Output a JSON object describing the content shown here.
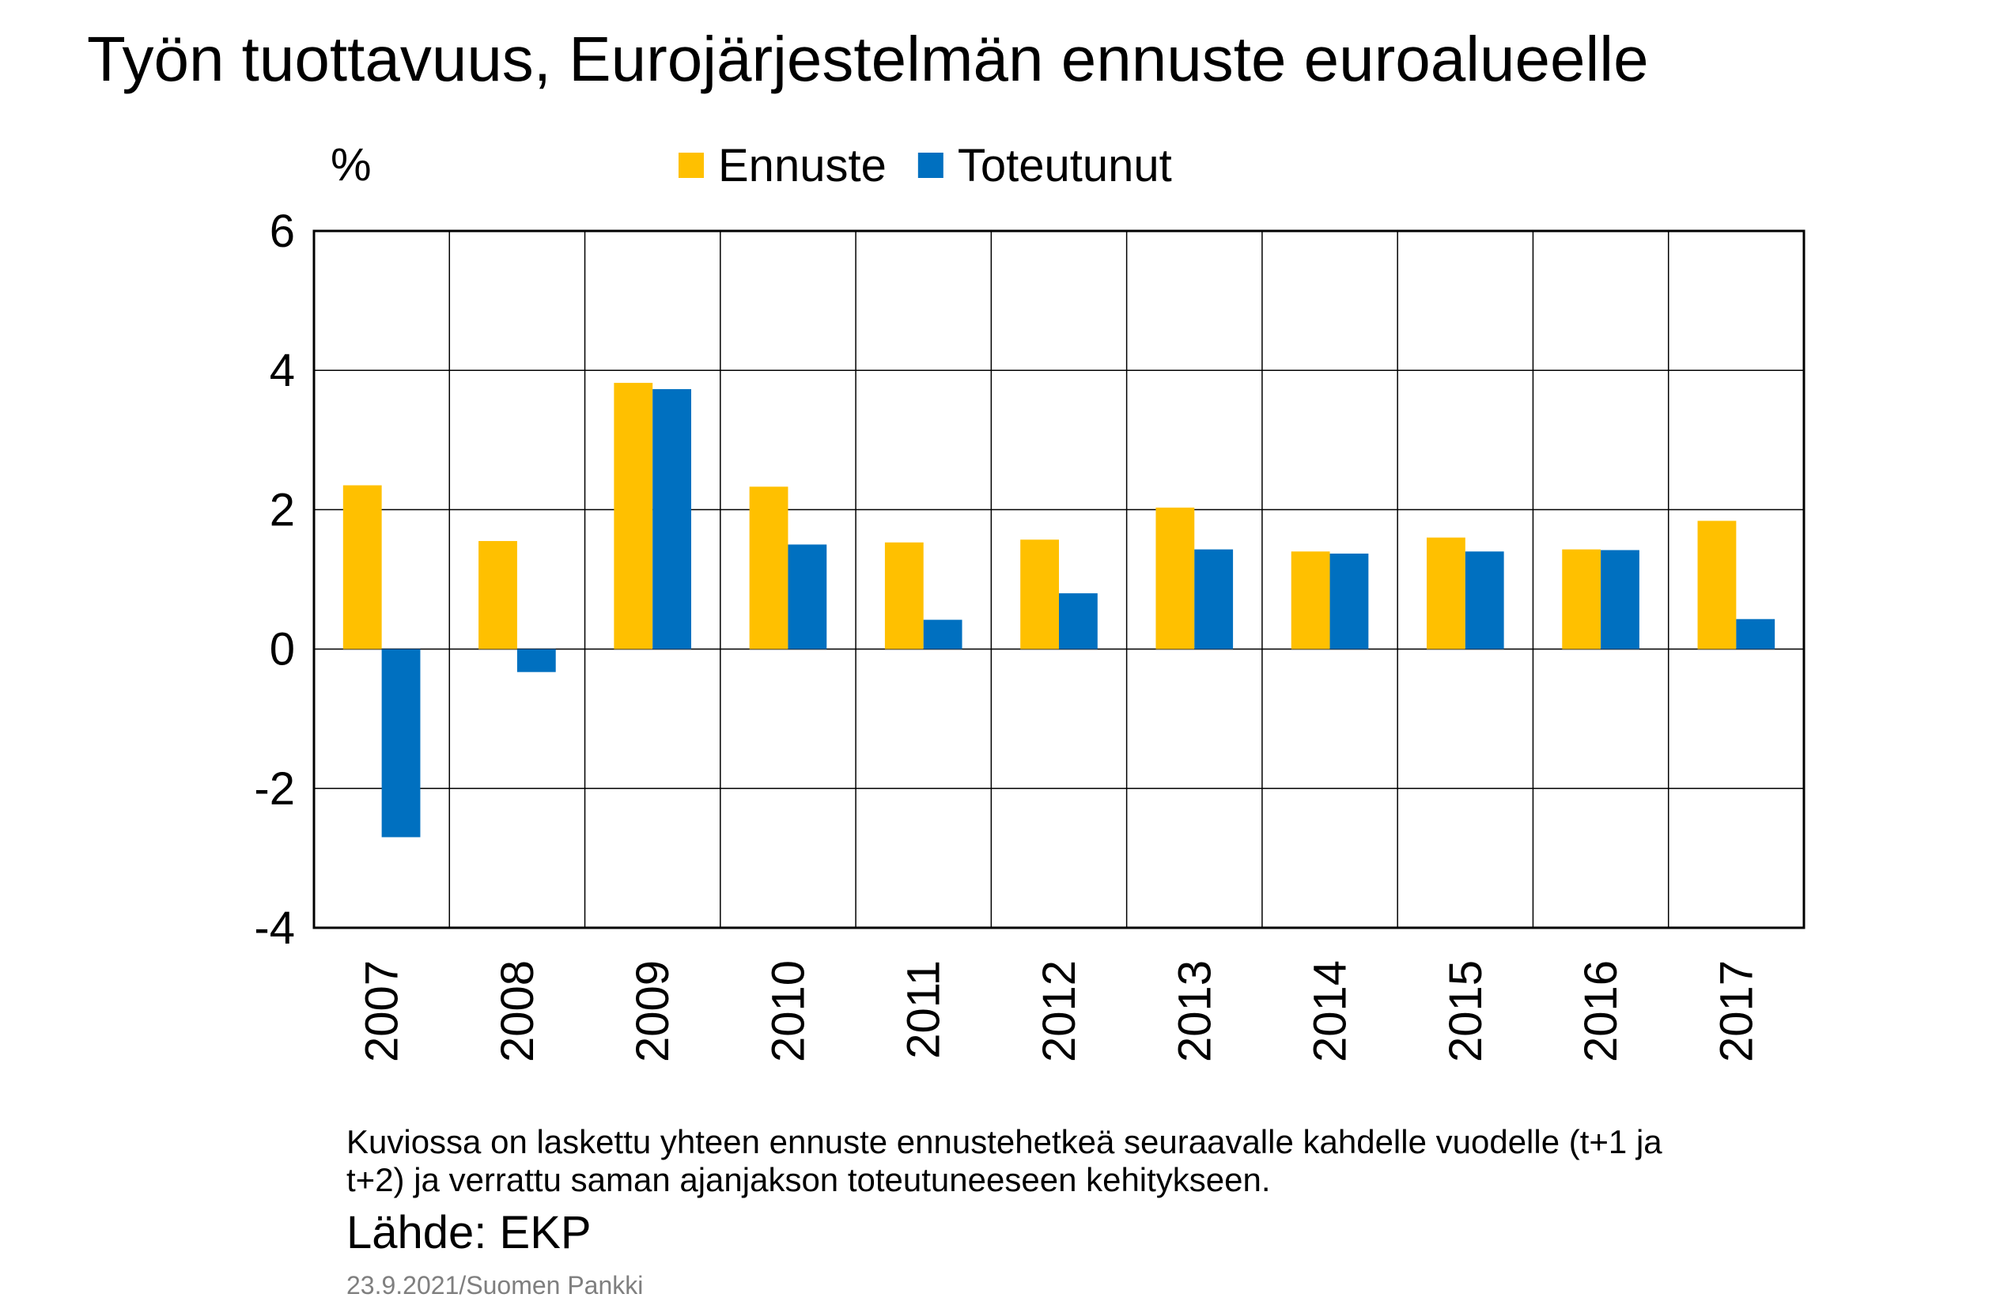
{
  "chart_data": {
    "type": "bar",
    "title": "Työn tuottavuus, Eurojärjestelmän ennuste euroalueelle",
    "y_axis_label": "%",
    "categories": [
      "2007",
      "2008",
      "2009",
      "2010",
      "2011",
      "2012",
      "2013",
      "2014",
      "2015",
      "2016",
      "2017"
    ],
    "series": [
      {
        "name": "Ennuste",
        "color": "#FFC000",
        "values": [
          2.35,
          1.55,
          3.82,
          2.33,
          1.53,
          1.57,
          2.03,
          1.4,
          1.6,
          1.43,
          1.84
        ]
      },
      {
        "name": "Toteutunut",
        "color": "#0070C0",
        "values": [
          -2.7,
          -0.33,
          3.73,
          1.5,
          0.42,
          0.8,
          1.43,
          1.37,
          1.4,
          1.42,
          0.43
        ]
      }
    ],
    "ylim": [
      -4,
      6
    ],
    "yticks": [
      -4,
      -2,
      0,
      2,
      4,
      6
    ],
    "grid": true,
    "note": [
      "Kuviossa on laskettu yhteen ennuste ennustehetkeä seuraavalle kahdelle vuodelle (t+1 ja",
      "t+2) ja verrattu saman ajanjakson toteutuneeseen kehitykseen."
    ],
    "source": "Lähde: EKP",
    "footer": "23.9.2021/Suomen Pankki"
  }
}
